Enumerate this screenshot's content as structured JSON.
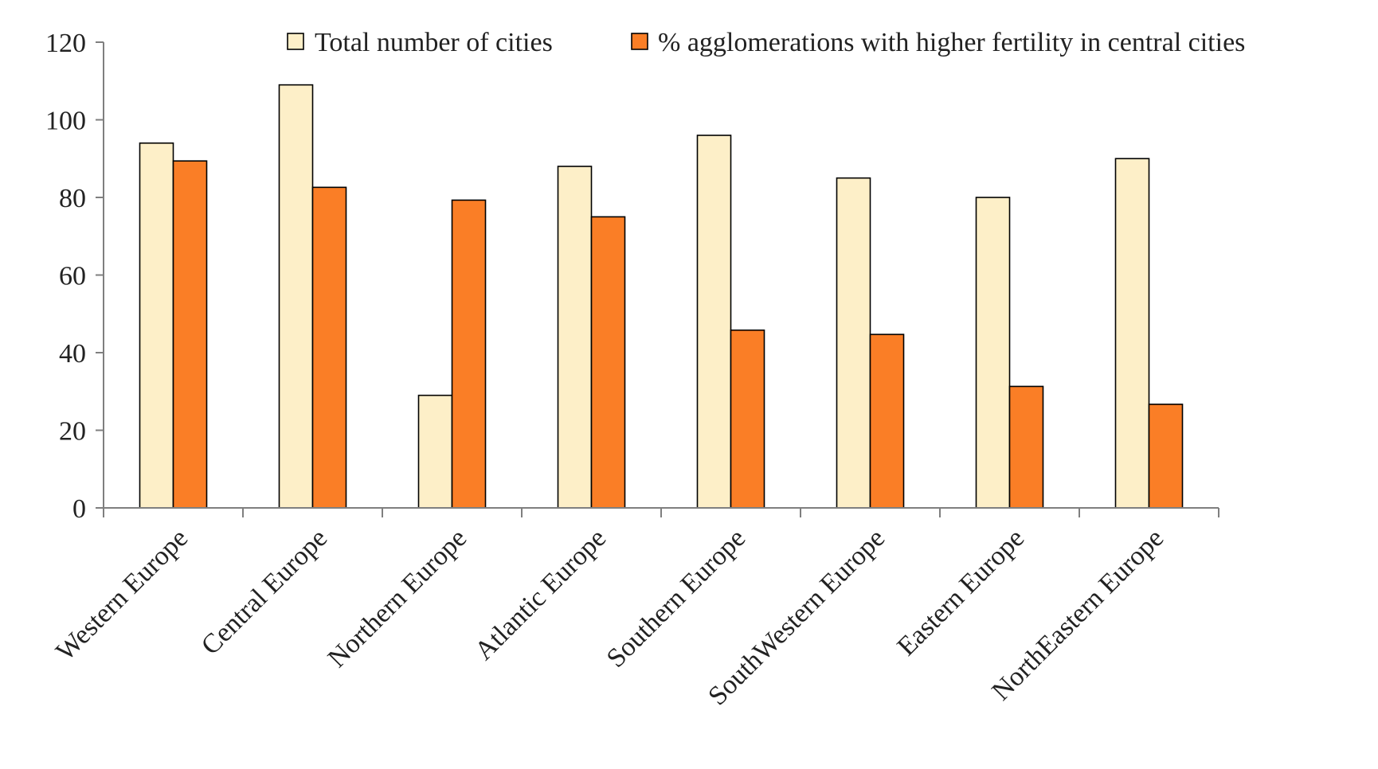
{
  "chart_data": {
    "type": "bar",
    "title": "",
    "xlabel": "",
    "ylabel": "",
    "ylim": [
      0,
      120
    ],
    "yticks": [
      0,
      20,
      40,
      60,
      80,
      100,
      120
    ],
    "grid": false,
    "legend_position": "top-right",
    "categories": [
      "Western Europe",
      "Central Europe",
      "Northern Europe",
      "Atlantic Europe",
      "Southern Europe",
      "SouthWestern Europe",
      "Eastern Europe",
      "NorthEastern Europe"
    ],
    "series": [
      {
        "name": "Total number of cities",
        "color": "#fdefc8",
        "values": [
          94,
          109,
          29,
          88,
          96,
          85,
          80,
          90
        ]
      },
      {
        "name": "% agglomerations with higher fertility in central cities",
        "color": "#fa7e26",
        "values": [
          89.4,
          82.6,
          79.3,
          75.0,
          45.8,
          44.7,
          31.3,
          26.7
        ]
      }
    ]
  }
}
